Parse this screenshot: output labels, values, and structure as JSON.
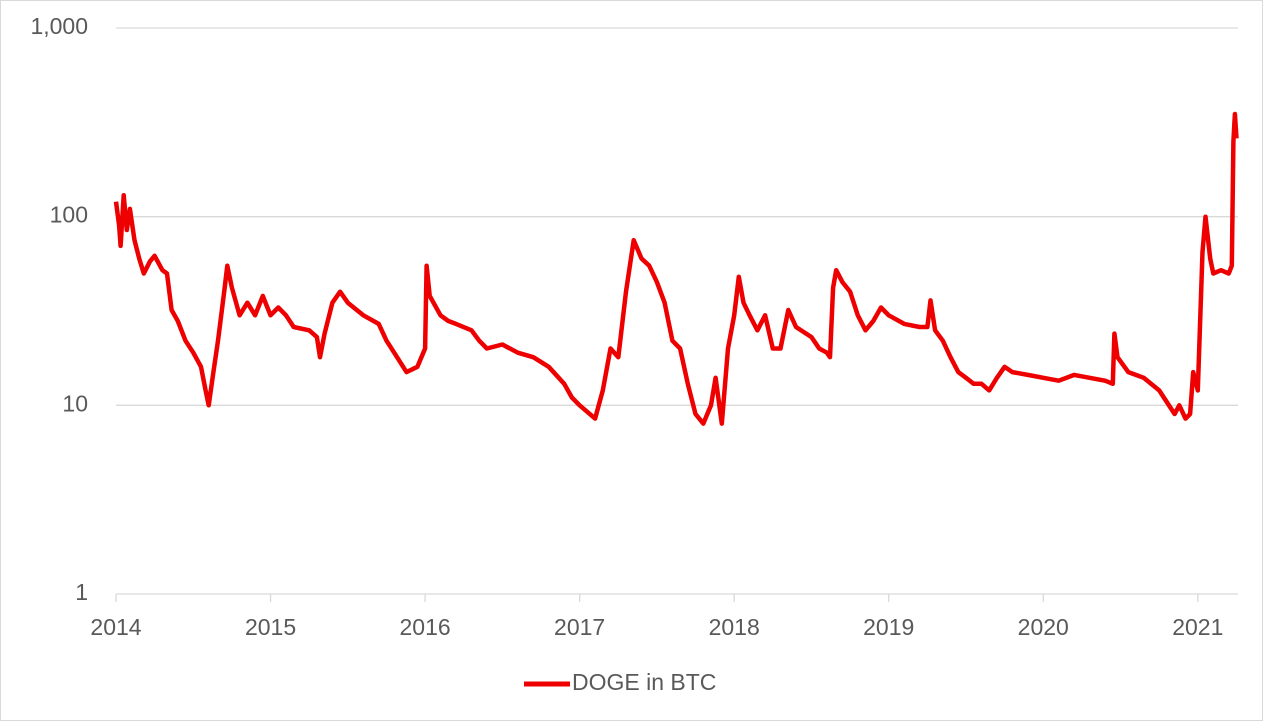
{
  "chart_data": {
    "type": "line",
    "log_y": true,
    "grid": true,
    "legend": "bottom",
    "xlim": [
      2014,
      2021.26
    ],
    "xticks": [
      2014,
      2015,
      2016,
      2017,
      2018,
      2019,
      2020,
      2021
    ],
    "ylim": [
      1,
      1000
    ],
    "yticks": [
      1,
      10,
      100,
      {
        "value": 1000,
        "label": "1,000"
      }
    ],
    "series": [
      {
        "name": "DOGE in BTC",
        "color": "#ee0000",
        "x": [
          2014.0,
          2014.02,
          2014.03,
          2014.05,
          2014.07,
          2014.09,
          2014.12,
          2014.15,
          2014.18,
          2014.22,
          2014.25,
          2014.3,
          2014.33,
          2014.36,
          2014.4,
          2014.45,
          2014.5,
          2014.55,
          2014.58,
          2014.6,
          2014.63,
          2014.66,
          2014.7,
          2014.72,
          2014.75,
          2014.8,
          2014.85,
          2014.9,
          2014.95,
          2015.0,
          2015.05,
          2015.1,
          2015.15,
          2015.25,
          2015.3,
          2015.32,
          2015.35,
          2015.4,
          2015.45,
          2015.5,
          2015.6,
          2015.7,
          2015.75,
          2015.8,
          2015.88,
          2015.95,
          2016.0,
          2016.01,
          2016.03,
          2016.1,
          2016.15,
          2016.2,
          2016.3,
          2016.35,
          2016.4,
          2016.5,
          2016.6,
          2016.7,
          2016.8,
          2016.9,
          2016.95,
          2017.0,
          2017.1,
          2017.15,
          2017.2,
          2017.25,
          2017.3,
          2017.35,
          2017.4,
          2017.45,
          2017.5,
          2017.55,
          2017.6,
          2017.65,
          2017.7,
          2017.75,
          2017.8,
          2017.85,
          2017.88,
          2017.92,
          2017.96,
          2018.0,
          2018.03,
          2018.06,
          2018.1,
          2018.15,
          2018.2,
          2018.25,
          2018.3,
          2018.35,
          2018.4,
          2018.5,
          2018.55,
          2018.6,
          2018.62,
          2018.64,
          2018.66,
          2018.7,
          2018.75,
          2018.8,
          2018.85,
          2018.9,
          2018.95,
          2019.0,
          2019.1,
          2019.2,
          2019.25,
          2019.27,
          2019.3,
          2019.35,
          2019.4,
          2019.45,
          2019.5,
          2019.55,
          2019.6,
          2019.65,
          2019.7,
          2019.75,
          2019.8,
          2019.9,
          2020.0,
          2020.1,
          2020.2,
          2020.3,
          2020.4,
          2020.45,
          2020.46,
          2020.48,
          2020.55,
          2020.65,
          2020.75,
          2020.85,
          2020.88,
          2020.92,
          2020.95,
          2020.97,
          2021.0,
          2021.03,
          2021.05,
          2021.08,
          2021.1,
          2021.15,
          2021.2,
          2021.22,
          2021.23,
          2021.24,
          2021.25
        ],
        "values": [
          120,
          90,
          70,
          130,
          85,
          110,
          75,
          60,
          50,
          58,
          62,
          52,
          50,
          32,
          28,
          22,
          19,
          16,
          12,
          10,
          15,
          22,
          40,
          55,
          42,
          30,
          35,
          30,
          38,
          30,
          33,
          30,
          26,
          25,
          23,
          18,
          24,
          35,
          40,
          35,
          30,
          27,
          22,
          19,
          15,
          16,
          20,
          55,
          38,
          30,
          28,
          27,
          25,
          22,
          20,
          21,
          19,
          18,
          16,
          13,
          11,
          10,
          8.5,
          12,
          20,
          18,
          40,
          75,
          60,
          55,
          45,
          35,
          22,
          20,
          13,
          9,
          8,
          10,
          14,
          8,
          20,
          30,
          48,
          35,
          30,
          25,
          30,
          20,
          20,
          32,
          26,
          23,
          20,
          19,
          18,
          42,
          52,
          45,
          40,
          30,
          25,
          28,
          33,
          30,
          27,
          26,
          26,
          36,
          25,
          22,
          18,
          15,
          14,
          13,
          13,
          12,
          14,
          16,
          15,
          14.5,
          14,
          13.5,
          14.5,
          14,
          13.5,
          13,
          24,
          18,
          15,
          14,
          12,
          9,
          10,
          8.5,
          9,
          15,
          12,
          65,
          100,
          60,
          50,
          52,
          50,
          55,
          250,
          350,
          260
        ]
      }
    ]
  }
}
